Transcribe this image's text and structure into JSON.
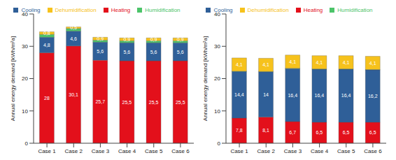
{
  "chart_data": [
    {
      "type": "bar",
      "stacked": true,
      "legend": "top",
      "grid": false,
      "ylabel": "Annual energy demand [kWh/m²a]",
      "categories": [
        "Case 1",
        "Case 2",
        "Case 3",
        "Case 4",
        "Case 5",
        "Case 6"
      ],
      "ylim": [
        0,
        40
      ],
      "yticks": [
        0,
        10,
        20,
        30,
        40
      ],
      "series": [
        {
          "name": "Heating",
          "color": "#e3101b",
          "values": [
            28,
            30.1,
            25.7,
            25.5,
            25.5,
            25.5
          ],
          "data_labels": true,
          "value_labels": [
            "28",
            "30,1",
            "25,7",
            "25,5",
            "25,5",
            "25,5"
          ]
        },
        {
          "name": "Cooling",
          "color": "#2f5f98",
          "values": [
            4.8,
            4.6,
            5.6,
            5.6,
            5.6,
            5.6
          ],
          "data_labels": true,
          "value_labels": [
            "4,8",
            "4,6",
            "5,6",
            "5,6",
            "5,6",
            "5,6"
          ]
        },
        {
          "name": "Humidification",
          "color": "#4cc46a",
          "values": [
            0.9,
            0.8,
            0.6,
            0.6,
            0.6,
            0.6
          ],
          "data_labels": false
        },
        {
          "name": "Dehumidification",
          "color": "#f6c21c",
          "values": [
            0.8,
            0.5,
            0.9,
            0.9,
            0.9,
            0.9
          ],
          "data_labels": true,
          "value_labels": [
            "0,8",
            "0,5",
            "0,9",
            "0,9",
            "0,9",
            "0,9"
          ]
        }
      ]
    },
    {
      "type": "bar",
      "stacked": true,
      "legend": "top",
      "grid": false,
      "ylabel": "Annual energy demand [kWh/m²a]",
      "categories": [
        "Case 1",
        "Case 2",
        "Case 3",
        "Case 4",
        "Case 5",
        "Case 6"
      ],
      "ylim": [
        0,
        40
      ],
      "yticks": [
        0,
        10,
        20,
        30,
        40
      ],
      "series": [
        {
          "name": "Heating",
          "color": "#e3101b",
          "values": [
            7.8,
            8.1,
            6.7,
            6.5,
            6.5,
            6.5
          ],
          "data_labels": true,
          "value_labels": [
            "7,8",
            "8,1",
            "6,7",
            "6,5",
            "6,5",
            "6,5"
          ]
        },
        {
          "name": "Cooling",
          "color": "#2f5f98",
          "values": [
            14.4,
            14,
            16.4,
            16.4,
            16.4,
            16.2
          ],
          "data_labels": true,
          "value_labels": [
            "14,4",
            "14",
            "16,4",
            "16,4",
            "16,4",
            "16,2"
          ]
        },
        {
          "name": "Humidification",
          "color": "#4cc46a",
          "values": [
            0.1,
            0.1,
            0.1,
            0.1,
            0.1,
            0.1
          ],
          "data_labels": false
        },
        {
          "name": "Dehumidification",
          "color": "#f6c21c",
          "values": [
            4.1,
            4.1,
            4.1,
            4.1,
            4.1,
            4.1
          ],
          "data_labels": true,
          "value_labels": [
            "4,1",
            "4,1",
            "4,1",
            "4,1",
            "4,1",
            "4,1"
          ]
        }
      ]
    }
  ]
}
